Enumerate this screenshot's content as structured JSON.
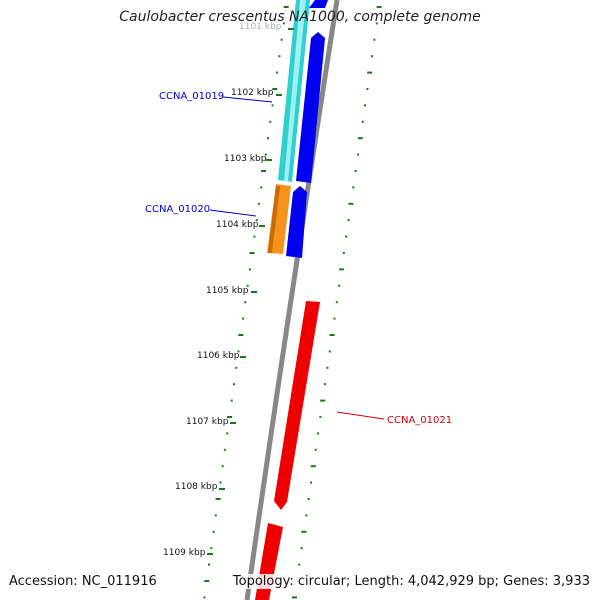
{
  "title": "Caulobacter crescentus NA1000, complete genome",
  "accession_text": "Accession: NC_011916",
  "stats_text": "Topology: circular; Length: 4,042,929 bp; Genes: 3,933",
  "ruler": {
    "ticks": [
      "1101 kbp",
      "1102 kbp",
      "1103 kbp",
      "1104 kbp",
      "1105 kbp",
      "1106 kbp",
      "1107 kbp",
      "1108 kbp",
      "1109 kbp"
    ]
  },
  "genes": [
    {
      "label": "CCNA_01019",
      "color": "#0000cc"
    },
    {
      "label": "CCNA_01020",
      "color": "#0000cc"
    },
    {
      "label": "CCNA_01021",
      "color": "#cc0000"
    }
  ],
  "colors": {
    "backbone": "#888888",
    "forward_cds": "#0000ee",
    "reverse_cds": "#ee0000",
    "feature_cyan": "#2ecfcf",
    "feature_orange": "#f5941d",
    "gc_skew": "#1a7a1a"
  }
}
